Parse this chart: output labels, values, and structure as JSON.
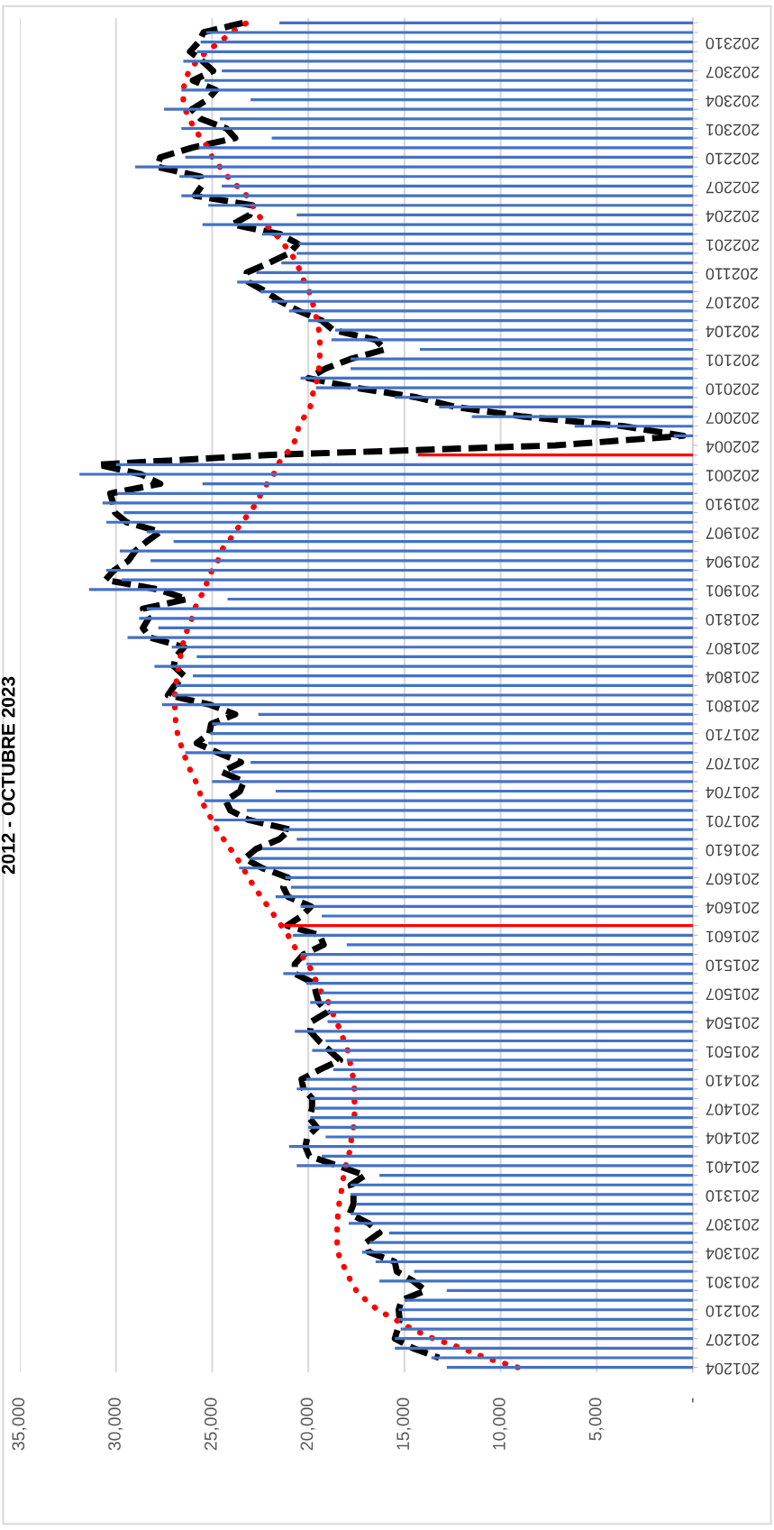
{
  "chart_data": {
    "type": "bar",
    "orientation": "horizontal",
    "title": "2012 - OCTUBRE 2023",
    "categories": [
      null,
      null,
      "202310",
      null,
      null,
      "202307",
      null,
      null,
      "202304",
      null,
      null,
      "202301",
      null,
      null,
      "202210",
      null,
      null,
      "202207",
      null,
      null,
      "202204",
      null,
      null,
      "202201",
      null,
      null,
      "202110",
      null,
      null,
      "202107",
      null,
      null,
      "202104",
      null,
      null,
      "202101",
      null,
      null,
      "202010",
      null,
      null,
      "202007",
      null,
      null,
      "202004",
      null,
      null,
      "202001",
      null,
      null,
      "201910",
      null,
      null,
      "201907",
      null,
      null,
      "201904",
      null,
      null,
      "201901",
      null,
      null,
      "201810",
      null,
      null,
      "201807",
      null,
      null,
      "201804",
      null,
      null,
      "201801",
      null,
      null,
      "201710",
      null,
      null,
      "201707",
      null,
      null,
      "201704",
      null,
      null,
      "201701",
      null,
      null,
      "201610",
      null,
      null,
      "201607",
      null,
      null,
      "201604",
      null,
      null,
      "201601",
      null,
      null,
      "201510",
      null,
      null,
      "201507",
      null,
      null,
      "201504",
      null,
      null,
      "201501",
      null,
      null,
      "201410",
      null,
      null,
      "201407",
      null,
      null,
      "201404",
      null,
      null,
      "201401",
      null,
      null,
      "201310",
      null,
      null,
      "201307",
      null,
      null,
      "201304",
      null,
      null,
      "201301",
      null,
      null,
      "201210",
      null,
      null,
      "201207",
      null,
      null,
      "201204"
    ],
    "xlim": [
      35000,
      0
    ],
    "xticks": [
      {
        "value": 35000,
        "label": "35,000"
      },
      {
        "value": 30000,
        "label": "30,000"
      },
      {
        "value": 25000,
        "label": "25,000"
      },
      {
        "value": 20000,
        "label": "20,000"
      },
      {
        "value": 15000,
        "label": "15,000"
      },
      {
        "value": 10000,
        "label": "10,000"
      },
      {
        "value": 5000,
        "label": "5,000"
      },
      {
        "value": 0,
        "label": "-"
      }
    ],
    "grid": "x",
    "series": [
      {
        "type": "bar",
        "values": [
          21500,
          25300,
          25600,
          25800,
          26500,
          24500,
          25400,
          26600,
          23000,
          27500,
          24600,
          26600,
          21900,
          25700,
          26400,
          29000,
          26700,
          24500,
          26600,
          25200,
          20600,
          25500,
          22400,
          20500,
          20600,
          21400,
          22700,
          23700,
          22500,
          21900,
          21000,
          20000,
          18600,
          18800,
          14200,
          17800,
          17800,
          20400,
          19600,
          15500,
          13200,
          11500,
          6150,
          1000,
          0,
          14300,
          30000,
          31900,
          25500,
          29900,
          30700,
          29600,
          30500,
          28400,
          27000,
          29800,
          28200,
          30500,
          29700,
          31400,
          24200,
          28400,
          28800,
          27800,
          29400,
          27100,
          25800,
          28000,
          26000,
          26900,
          27000,
          27600,
          22600,
          25000,
          25100,
          25200,
          26400,
          23000,
          24000,
          25000,
          21700,
          25400,
          23200,
          24900,
          21300,
          20600,
          22400,
          23000,
          23600,
          21200,
          20900,
          21700,
          20400,
          19300,
          21400,
          20800,
          18000,
          20400,
          20100,
          21300,
          20100,
          19300,
          19900,
          19000,
          19000,
          20700,
          19100,
          19800,
          18000,
          18700,
          20100,
          20600,
          19900,
          19700,
          19900,
          20000,
          19100,
          21000,
          19300,
          20600,
          16300,
          17800,
          17800,
          17500,
          17800,
          17900,
          15800,
          16800,
          17200,
          16500,
          14500,
          16300,
          12800,
          15000,
          15300,
          15300,
          15200,
          15500,
          15500,
          13600,
          12800
        ],
        "colors": [
          "#4472c4",
          "#4472c4",
          "#4472c4",
          "#4472c4",
          "#4472c4",
          "#4472c4",
          "#4472c4",
          "#4472c4",
          "#4472c4",
          "#4472c4",
          "#4472c4",
          "#4472c4",
          "#4472c4",
          "#4472c4",
          "#4472c4",
          "#4472c4",
          "#4472c4",
          "#4472c4",
          "#4472c4",
          "#4472c4",
          "#4472c4",
          "#4472c4",
          "#4472c4",
          "#4472c4",
          "#4472c4",
          "#4472c4",
          "#4472c4",
          "#4472c4",
          "#4472c4",
          "#4472c4",
          "#4472c4",
          "#4472c4",
          "#4472c4",
          "#4472c4",
          "#4472c4",
          "#4472c4",
          "#4472c4",
          "#4472c4",
          "#4472c4",
          "#4472c4",
          "#4472c4",
          "#4472c4",
          "#4472c4",
          "#4472c4",
          "#4472c4",
          "#ff0000",
          "#4472c4",
          "#4472c4",
          "#4472c4",
          "#4472c4",
          "#4472c4",
          "#4472c4",
          "#4472c4",
          "#4472c4",
          "#4472c4",
          "#4472c4",
          "#4472c4",
          "#4472c4",
          "#4472c4",
          "#4472c4",
          "#4472c4",
          "#4472c4",
          "#4472c4",
          "#4472c4",
          "#4472c4",
          "#4472c4",
          "#4472c4",
          "#4472c4",
          "#4472c4",
          "#4472c4",
          "#4472c4",
          "#4472c4",
          "#4472c4",
          "#4472c4",
          "#4472c4",
          "#4472c4",
          "#4472c4",
          "#4472c4",
          "#4472c4",
          "#4472c4",
          "#4472c4",
          "#4472c4",
          "#4472c4",
          "#4472c4",
          "#4472c4",
          "#4472c4",
          "#4472c4",
          "#4472c4",
          "#4472c4",
          "#4472c4",
          "#4472c4",
          "#4472c4",
          "#4472c4",
          "#4472c4",
          "#ff0000",
          "#4472c4",
          "#4472c4",
          "#4472c4",
          "#4472c4",
          "#4472c4",
          "#4472c4",
          "#4472c4",
          "#4472c4",
          "#4472c4",
          "#4472c4",
          "#4472c4",
          "#4472c4",
          "#4472c4",
          "#4472c4",
          "#4472c4",
          "#4472c4",
          "#4472c4",
          "#4472c4",
          "#4472c4",
          "#4472c4",
          "#4472c4",
          "#4472c4",
          "#4472c4",
          "#4472c4",
          "#4472c4",
          "#4472c4",
          "#4472c4",
          "#4472c4",
          "#4472c4",
          "#4472c4",
          "#4472c4",
          "#4472c4",
          "#4472c4",
          "#4472c4",
          "#4472c4",
          "#4472c4",
          "#4472c4",
          "#4472c4",
          "#4472c4",
          "#4472c4",
          "#4472c4",
          "#4472c4",
          "#4472c4",
          "#4472c4",
          "#4472c4",
          "#4472c4"
        ]
      },
      {
        "type": "line",
        "color": "#000000",
        "line_style": "dashed",
        "values": [
          23400,
          25450,
          25700,
          26150,
          25500,
          24950,
          26000,
          24800,
          25250,
          26050,
          25600,
          24250,
          23800,
          26050,
          27700,
          27850,
          25600,
          25550,
          25900,
          22900,
          23050,
          23950,
          21450,
          20550,
          21000,
          22050,
          23200,
          23100,
          22200,
          21450,
          20500,
          19300,
          18700,
          16500,
          16000,
          17800,
          19100,
          20000,
          17550,
          14350,
          12350,
          8800,
          3600,
          500,
          7150,
          22150,
          30950,
          28700,
          27700,
          30300,
          30150,
          30050,
          29450,
          27700,
          28400,
          29000,
          29350,
          30100,
          30550,
          27800,
          26300,
          28600,
          28300,
          28600,
          28250,
          26450,
          26900,
          27000,
          26450,
          26950,
          27300,
          25100,
          23800,
          25050,
          25150,
          25800,
          24700,
          23500,
          24500,
          23350,
          23550,
          24300,
          24050,
          23100,
          20950,
          21500,
          22700,
          23300,
          22400,
          21050,
          21300,
          21050,
          19850,
          20350,
          21100,
          19400,
          19200,
          20250,
          20700,
          20700,
          19700,
          19600,
          19450,
          19000,
          19850,
          19900,
          19450,
          18900,
          18350,
          19400,
          20350,
          20250,
          19800,
          19800,
          19950,
          19550,
          20050,
          20150,
          19950,
          18450,
          17050,
          17800,
          17650,
          17650,
          17850,
          16850,
          16300,
          17000,
          16850,
          15500,
          15400,
          14550,
          13900,
          15150,
          15300,
          15250,
          15350,
          15500,
          14550,
          13200,
          null
        ]
      },
      {
        "type": "line",
        "color": "#ff0000",
        "line_style": "dotted",
        "values": [
          23200,
          24000,
          24600,
          25300,
          25800,
          26200,
          26400,
          26500,
          26500,
          26400,
          26200,
          25900,
          25600,
          25200,
          25000,
          24600,
          24200,
          23700,
          23200,
          22900,
          22600,
          22200,
          21700,
          21300,
          20900,
          20600,
          20400,
          20200,
          19950,
          19800,
          19650,
          19550,
          19450,
          19400,
          19400,
          19400,
          19450,
          19500,
          19700,
          19800,
          19900,
          20200,
          20500,
          20600,
          20800,
          21200,
          21600,
          21800,
          22150,
          22450,
          22700,
          23050,
          23450,
          23800,
          24150,
          24550,
          24700,
          25000,
          25250,
          25350,
          25700,
          25900,
          26050,
          26250,
          26450,
          26550,
          26650,
          26750,
          26800,
          26900,
          26950,
          26950,
          26900,
          26900,
          26800,
          26650,
          26500,
          26300,
          26100,
          25850,
          25650,
          25550,
          25300,
          25000,
          24750,
          24400,
          24050,
          23700,
          23400,
          23100,
          22800,
          22450,
          22100,
          21750,
          21400,
          21050,
          20800,
          20400,
          20000,
          19750,
          19550,
          19300,
          18950,
          18750,
          18550,
          18300,
          18150,
          17950,
          17850,
          17750,
          17650,
          17600,
          17600,
          17600,
          17600,
          17650,
          17750,
          17800,
          17900,
          18050,
          18150,
          18250,
          18300,
          18400,
          18450,
          18500,
          18500,
          18500,
          18450,
          18300,
          18000,
          17800,
          17500,
          17000,
          16400,
          15500,
          14600,
          13500,
          12000,
          10800,
          9100
        ]
      }
    ]
  }
}
